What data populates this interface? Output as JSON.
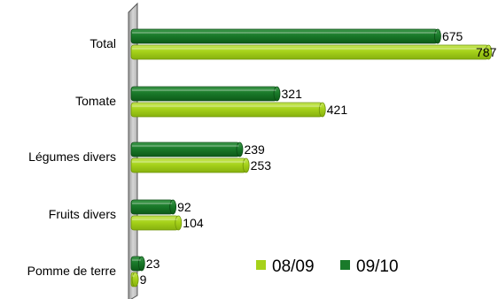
{
  "chart_data": {
    "type": "bar",
    "orientation": "horizontal",
    "categories": [
      "Total",
      "Tomate",
      "Légumes divers",
      "Fruits divers",
      "Pomme de terre"
    ],
    "series": [
      {
        "name": "09/10",
        "values": [
          675,
          321,
          239,
          92,
          23
        ],
        "color": "#1a7a2a"
      },
      {
        "name": "08/09",
        "values": [
          787,
          421,
          253,
          104,
          9
        ],
        "color": "#a6d21a"
      }
    ],
    "xlim": [
      0,
      800
    ],
    "legend_position": "bottom-right",
    "legend_order": [
      "08/09",
      "09/10"
    ],
    "gridlines": false
  }
}
